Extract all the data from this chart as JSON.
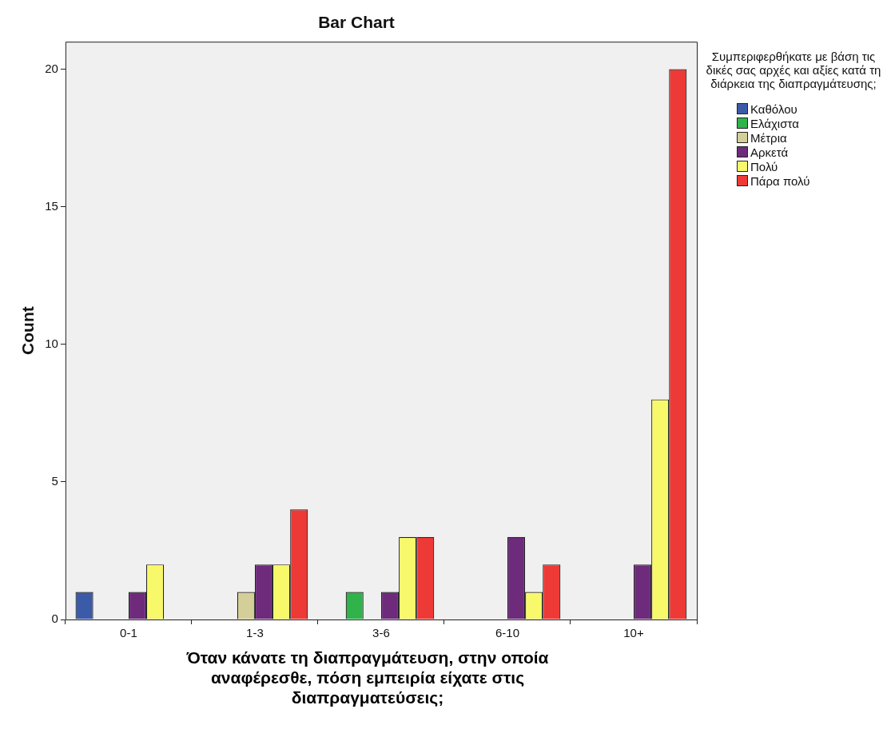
{
  "chart_data": {
    "type": "bar",
    "title": "Bar Chart",
    "xlabel": "Όταν κάνατε τη διαπραγμάτευση, στην οποία αναφέρεσθε, πόση εμπειρία είχατε στις διαπραγματεύσεις;",
    "ylabel": "Count",
    "legend_title": "Συμπεριφερθήκατε με βάση τις δικές σας αρχές και αξίες κατά τη διάρκεια της διαπραγμάτευσης;",
    "categories": [
      "0-1",
      "1-3",
      "3-6",
      "6-10",
      "10+"
    ],
    "series": [
      {
        "name": "Καθόλου",
        "color": "#3b5ba8",
        "values": [
          1,
          null,
          null,
          null,
          null
        ]
      },
      {
        "name": "Ελάχιστα",
        "color": "#2fb34a",
        "values": [
          null,
          null,
          1,
          null,
          null
        ]
      },
      {
        "name": "Μέτρια",
        "color": "#d4cf98",
        "values": [
          null,
          1,
          null,
          null,
          null
        ]
      },
      {
        "name": "Αρκετά",
        "color": "#6e2b7c",
        "values": [
          1,
          2,
          1,
          3,
          2
        ]
      },
      {
        "name": "Πολύ",
        "color": "#f8f86b",
        "values": [
          2,
          2,
          3,
          1,
          8
        ]
      },
      {
        "name": "Πάρα πολύ",
        "color": "#ee3a36",
        "values": [
          null,
          4,
          3,
          2,
          20
        ]
      }
    ],
    "ylim": [
      0,
      21
    ],
    "yticks": [
      0,
      5,
      10,
      15,
      20
    ],
    "grid": false,
    "legend": "right"
  }
}
